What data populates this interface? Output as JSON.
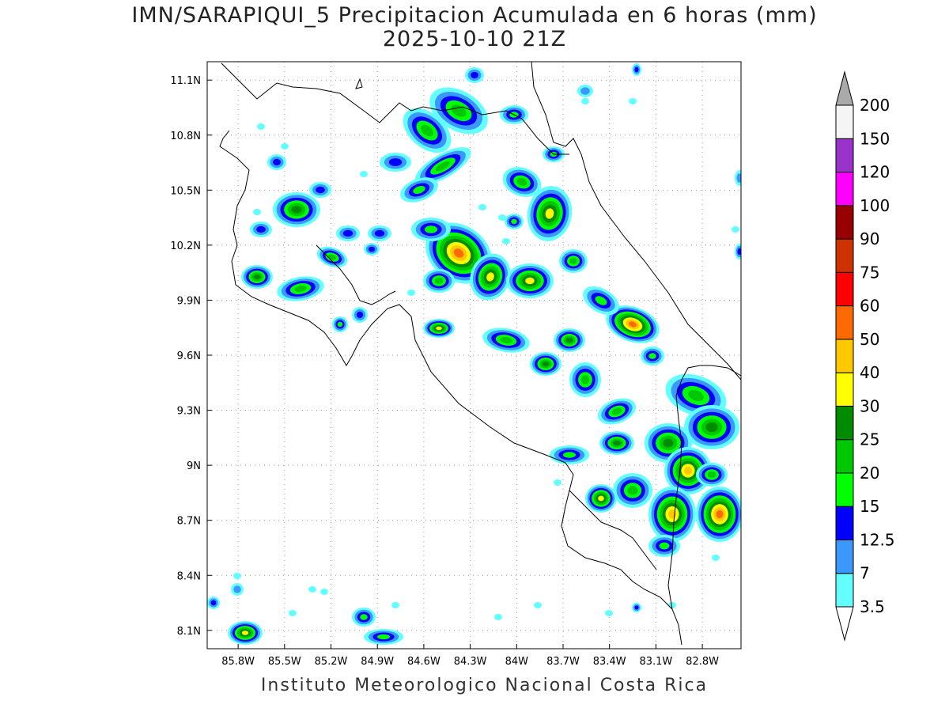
{
  "title": {
    "line1": "IMN/SARAPIQUI_5 Precipitacion Acumulada en 6 horas (mm)",
    "line2": "2025-10-10 21Z"
  },
  "credit": "Instituto Meteorologico Nacional Costa Rica",
  "map": {
    "lon_range": [
      -86.0,
      -82.55
    ],
    "lat_range": [
      8.0,
      11.2
    ],
    "lon_ticks": [
      {
        "value": -85.8,
        "label": "85.8W"
      },
      {
        "value": -85.5,
        "label": "85.5W"
      },
      {
        "value": -85.2,
        "label": "85.2W"
      },
      {
        "value": -84.9,
        "label": "84.9W"
      },
      {
        "value": -84.6,
        "label": "84.6W"
      },
      {
        "value": -84.3,
        "label": "84.3W"
      },
      {
        "value": -84.0,
        "label": "84W"
      },
      {
        "value": -83.7,
        "label": "83.7W"
      },
      {
        "value": -83.4,
        "label": "83.4W"
      },
      {
        "value": -83.1,
        "label": "83.1W"
      },
      {
        "value": -82.8,
        "label": "82.8W"
      }
    ],
    "lat_ticks": [
      {
        "value": 11.1,
        "label": "11.1N"
      },
      {
        "value": 10.8,
        "label": "10.8N"
      },
      {
        "value": 10.5,
        "label": "10.5N"
      },
      {
        "value": 10.2,
        "label": "10.2N"
      },
      {
        "value": 9.9,
        "label": "9.9N"
      },
      {
        "value": 9.6,
        "label": "9.6N"
      },
      {
        "value": 9.3,
        "label": "9.3N"
      },
      {
        "value": 9.0,
        "label": "9N"
      },
      {
        "value": 8.7,
        "label": "8.7N"
      },
      {
        "value": 8.4,
        "label": "8.4N"
      },
      {
        "value": 8.1,
        "label": "8.1N"
      }
    ],
    "grid": true
  },
  "colorbar": {
    "units": "mm",
    "levels": [
      {
        "label": "3.5",
        "color": "#63ffff"
      },
      {
        "label": "7",
        "color": "#3a98ff"
      },
      {
        "label": "12.5",
        "color": "#0000ff"
      },
      {
        "label": "15",
        "color": "#00ff00"
      },
      {
        "label": "20",
        "color": "#00c800"
      },
      {
        "label": "25",
        "color": "#008c00"
      },
      {
        "label": "30",
        "color": "#ffff00"
      },
      {
        "label": "40",
        "color": "#ffc800"
      },
      {
        "label": "50",
        "color": "#ff6a00"
      },
      {
        "label": "60",
        "color": "#ff0000"
      },
      {
        "label": "75",
        "color": "#cc3300"
      },
      {
        "label": "90",
        "color": "#990000"
      },
      {
        "label": "100",
        "color": "#ff00ff"
      },
      {
        "label": "120",
        "color": "#9933cc"
      },
      {
        "label": "150",
        "color": "#f5f5f5"
      },
      {
        "label": "200",
        "color": "#aaaaaa"
      }
    ]
  }
}
